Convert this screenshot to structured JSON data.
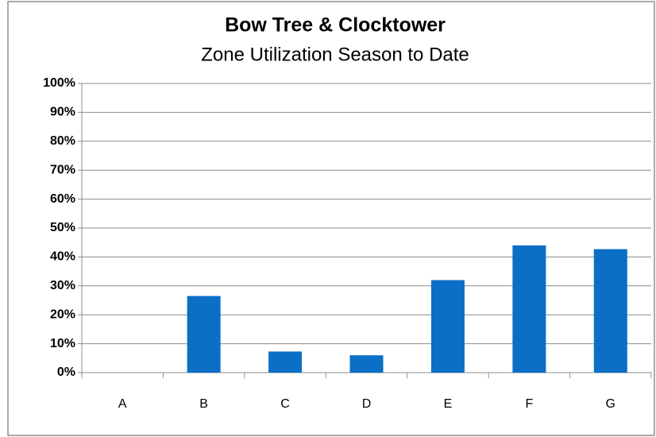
{
  "chart_data": {
    "type": "bar",
    "title": "Bow Tree & Clocktower",
    "subtitle": "Zone Utilization Season to Date",
    "categories": [
      "A",
      "B",
      "C",
      "D",
      "E",
      "F",
      "G"
    ],
    "values": [
      0,
      26.5,
      7.3,
      6,
      32,
      44,
      42.7
    ],
    "color": "#0b6fc6",
    "ylim": [
      0,
      100
    ],
    "yticks": [
      {
        "value": 0,
        "label": "0%"
      },
      {
        "value": 10,
        "label": "10%"
      },
      {
        "value": 20,
        "label": "20%"
      },
      {
        "value": 30,
        "label": "30%"
      },
      {
        "value": 40,
        "label": "40%"
      },
      {
        "value": 50,
        "label": "50%"
      },
      {
        "value": 60,
        "label": "60%"
      },
      {
        "value": 70,
        "label": "70%"
      },
      {
        "value": 80,
        "label": "80%"
      },
      {
        "value": 90,
        "label": "90%"
      },
      {
        "value": 100,
        "label": "100%"
      }
    ],
    "grid": true
  }
}
